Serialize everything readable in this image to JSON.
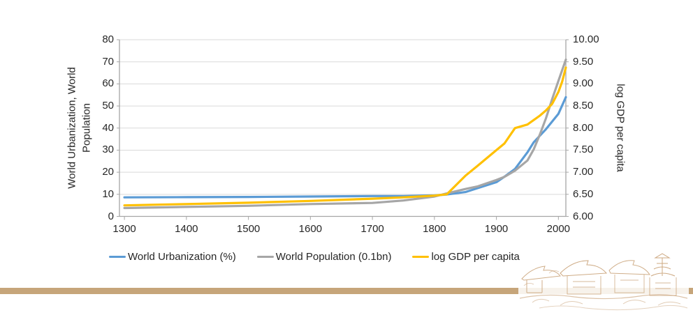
{
  "page": {
    "footer_bar_color": "#c6a57a",
    "sketch_color": "#c49a6c"
  },
  "chart": {
    "left_axis_title_line1": "World Urbanization, World",
    "left_axis_title_line2": "Population",
    "right_axis_title": "log GDP per capita",
    "grid_color": "#d9d9d9",
    "axis_line_color": "#a6a6a6",
    "legend": [
      {
        "label": "World Urbanization (%)",
        "color": "#5b9bd5"
      },
      {
        "label": "World Population (0.1bn)",
        "color": "#a6a6a6"
      },
      {
        "label": "log GDP per capita",
        "color": "#ffc000"
      }
    ]
  },
  "chart_data": {
    "type": "line",
    "title": "",
    "x_axis": {
      "tick_labels": [
        "1300",
        "1400",
        "1500",
        "1600",
        "1700",
        "1800",
        "1900",
        "2000"
      ],
      "tick_values": [
        1300,
        1400,
        1500,
        1600,
        1700,
        1800,
        1900,
        2000
      ],
      "range": [
        1292,
        2012
      ],
      "grid": false
    },
    "left_axis": {
      "label": "World Urbanization, World Population",
      "tick_labels": [
        "0",
        "10",
        "20",
        "30",
        "40",
        "50",
        "60",
        "70",
        "80"
      ],
      "range": [
        0,
        80
      ],
      "tick_step": 10,
      "grid": true
    },
    "right_axis": {
      "label": "log GDP per capita",
      "tick_labels": [
        "6.00",
        "6.50",
        "7.00",
        "7.50",
        "8.00",
        "8.50",
        "9.00",
        "9.50",
        "10.00"
      ],
      "range": [
        6,
        10
      ],
      "tick_step": 0.5
    },
    "legend_position": "bottom",
    "series": [
      {
        "name": "World Urbanization (%)",
        "axis": "left",
        "color": "#5b9bd5",
        "x": [
          1300,
          1400,
          1500,
          1600,
          1700,
          1750,
          1800,
          1820,
          1850,
          1870,
          1900,
          1913,
          1930,
          1950,
          1960,
          1970,
          1980,
          1990,
          2000,
          2012
        ],
        "y": [
          8.6,
          8.7,
          8.8,
          9.0,
          9.2,
          9.2,
          9.5,
          9.9,
          11.0,
          12.8,
          15.5,
          18.0,
          21.5,
          29.0,
          33.5,
          36.5,
          39.5,
          43.0,
          46.5,
          54.0
        ]
      },
      {
        "name": "World Population (0.1bn)",
        "axis": "left",
        "color": "#a6a6a6",
        "x": [
          1300,
          1400,
          1500,
          1600,
          1700,
          1750,
          1800,
          1820,
          1850,
          1870,
          1900,
          1913,
          1930,
          1950,
          1960,
          1970,
          1980,
          1990,
          2000,
          2012
        ],
        "y": [
          3.8,
          4.3,
          4.8,
          5.6,
          6.1,
          7.2,
          9.0,
          10.4,
          12.4,
          13.6,
          16.5,
          17.9,
          20.7,
          25.3,
          30.3,
          37.0,
          44.5,
          53.2,
          61.4,
          71.0
        ]
      },
      {
        "name": "log GDP per capita",
        "axis": "right",
        "color": "#ffc000",
        "x": [
          1300,
          1400,
          1500,
          1600,
          1700,
          1750,
          1800,
          1820,
          1850,
          1870,
          1900,
          1913,
          1930,
          1950,
          1960,
          1970,
          1980,
          1990,
          2000,
          2006,
          2012
        ],
        "y": [
          6.25,
          6.28,
          6.31,
          6.35,
          6.4,
          6.43,
          6.47,
          6.5,
          6.92,
          7.15,
          7.5,
          7.65,
          8.0,
          8.08,
          8.18,
          8.28,
          8.4,
          8.55,
          8.82,
          9.05,
          9.37
        ]
      }
    ]
  }
}
